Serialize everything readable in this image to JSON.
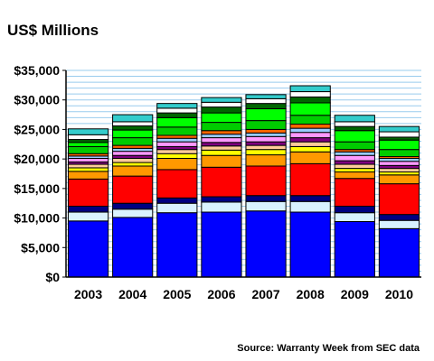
{
  "chart_data": {
    "type": "bar",
    "stacked": true,
    "title": "US$ Millions",
    "source": "Source: Warranty Week from SEC data",
    "categories": [
      "2003",
      "2004",
      "2005",
      "2006",
      "2007",
      "2008",
      "2009",
      "2010"
    ],
    "ylim": [
      0,
      35000
    ],
    "yticks": [
      "$0",
      "$5,000",
      "$10,000",
      "$15,000",
      "$20,000",
      "$25,000",
      "$30,000",
      "$35,000"
    ],
    "ytick_values": [
      0,
      5000,
      10000,
      15000,
      20000,
      25000,
      30000,
      35000
    ],
    "grid": true,
    "plot_background": "#ffffff",
    "grid_color": "#99ccee",
    "series": [
      {
        "color": "#0000ff",
        "values": [
          9500,
          10100,
          10900,
          11000,
          11200,
          11000,
          9400,
          8200
        ]
      },
      {
        "color": "#d9f2ff",
        "values": [
          1500,
          1400,
          1600,
          1700,
          1600,
          1800,
          1500,
          1400
        ]
      },
      {
        "color": "#000080",
        "values": [
          1000,
          1000,
          900,
          900,
          1000,
          1000,
          1100,
          1000
        ]
      },
      {
        "color": "#ff0000",
        "values": [
          4600,
          4600,
          4800,
          5000,
          5000,
          5400,
          4700,
          5200
        ]
      },
      {
        "color": "#ff9900",
        "values": [
          1300,
          1700,
          1900,
          2000,
          1900,
          2000,
          1100,
          1500
        ]
      },
      {
        "color": "#ffff00",
        "values": [
          600,
          600,
          800,
          900,
          900,
          900,
          600,
          500
        ]
      },
      {
        "color": "#ffcc99",
        "values": [
          600,
          700,
          700,
          700,
          700,
          800,
          700,
          600
        ]
      },
      {
        "color": "#800080",
        "values": [
          400,
          500,
          500,
          600,
          600,
          700,
          600,
          500
        ]
      },
      {
        "color": "#ff99ff",
        "values": [
          600,
          700,
          800,
          800,
          900,
          900,
          900,
          700
        ]
      },
      {
        "color": "#99ccff",
        "values": [
          400,
          500,
          600,
          600,
          600,
          700,
          600,
          500
        ]
      },
      {
        "color": "#ff6600",
        "values": [
          400,
          500,
          500,
          600,
          600,
          700,
          400,
          300
        ]
      },
      {
        "color": "#00cc00",
        "values": [
          1200,
          1300,
          1400,
          1400,
          1500,
          1500,
          1300,
          1200
        ]
      },
      {
        "color": "#00ff00",
        "values": [
          700,
          1300,
          1600,
          1600,
          2000,
          2100,
          1900,
          1600
        ]
      },
      {
        "color": "#006600",
        "values": [
          500,
          700,
          800,
          1000,
          900,
          1000,
          700,
          500
        ]
      },
      {
        "color": "#ffffff",
        "values": [
          800,
          700,
          800,
          800,
          800,
          900,
          800,
          900
        ]
      },
      {
        "color": "#33cccc",
        "values": [
          1000,
          1200,
          800,
          800,
          700,
          1000,
          1100,
          900
        ]
      }
    ]
  }
}
